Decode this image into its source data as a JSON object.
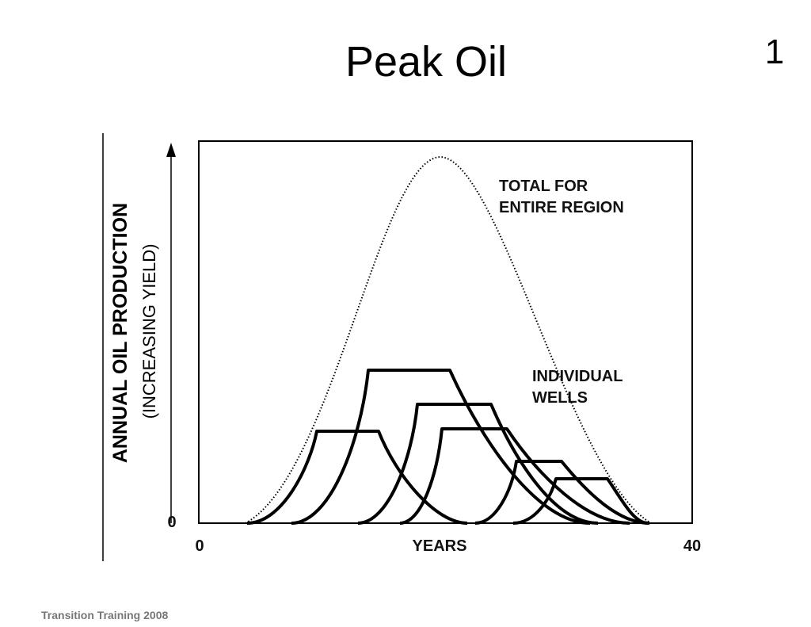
{
  "slide": {
    "title": "Peak Oil",
    "page_number": "1",
    "footer": "Transition Training 2008"
  },
  "figure": {
    "y_axis_title": "ANNUAL OIL PRODUCTION",
    "y_axis_subtitle": "(INCREASING YIELD)",
    "y_origin_label": "0",
    "x_start_label": "0",
    "x_axis_title": "YEARS",
    "x_end_label": "40",
    "total_label_line1": "TOTAL FOR",
    "total_label_line2": "ENTIRE REGION",
    "wells_label_line1": "INDIVIDUAL",
    "wells_label_line2": "WELLS"
  }
}
